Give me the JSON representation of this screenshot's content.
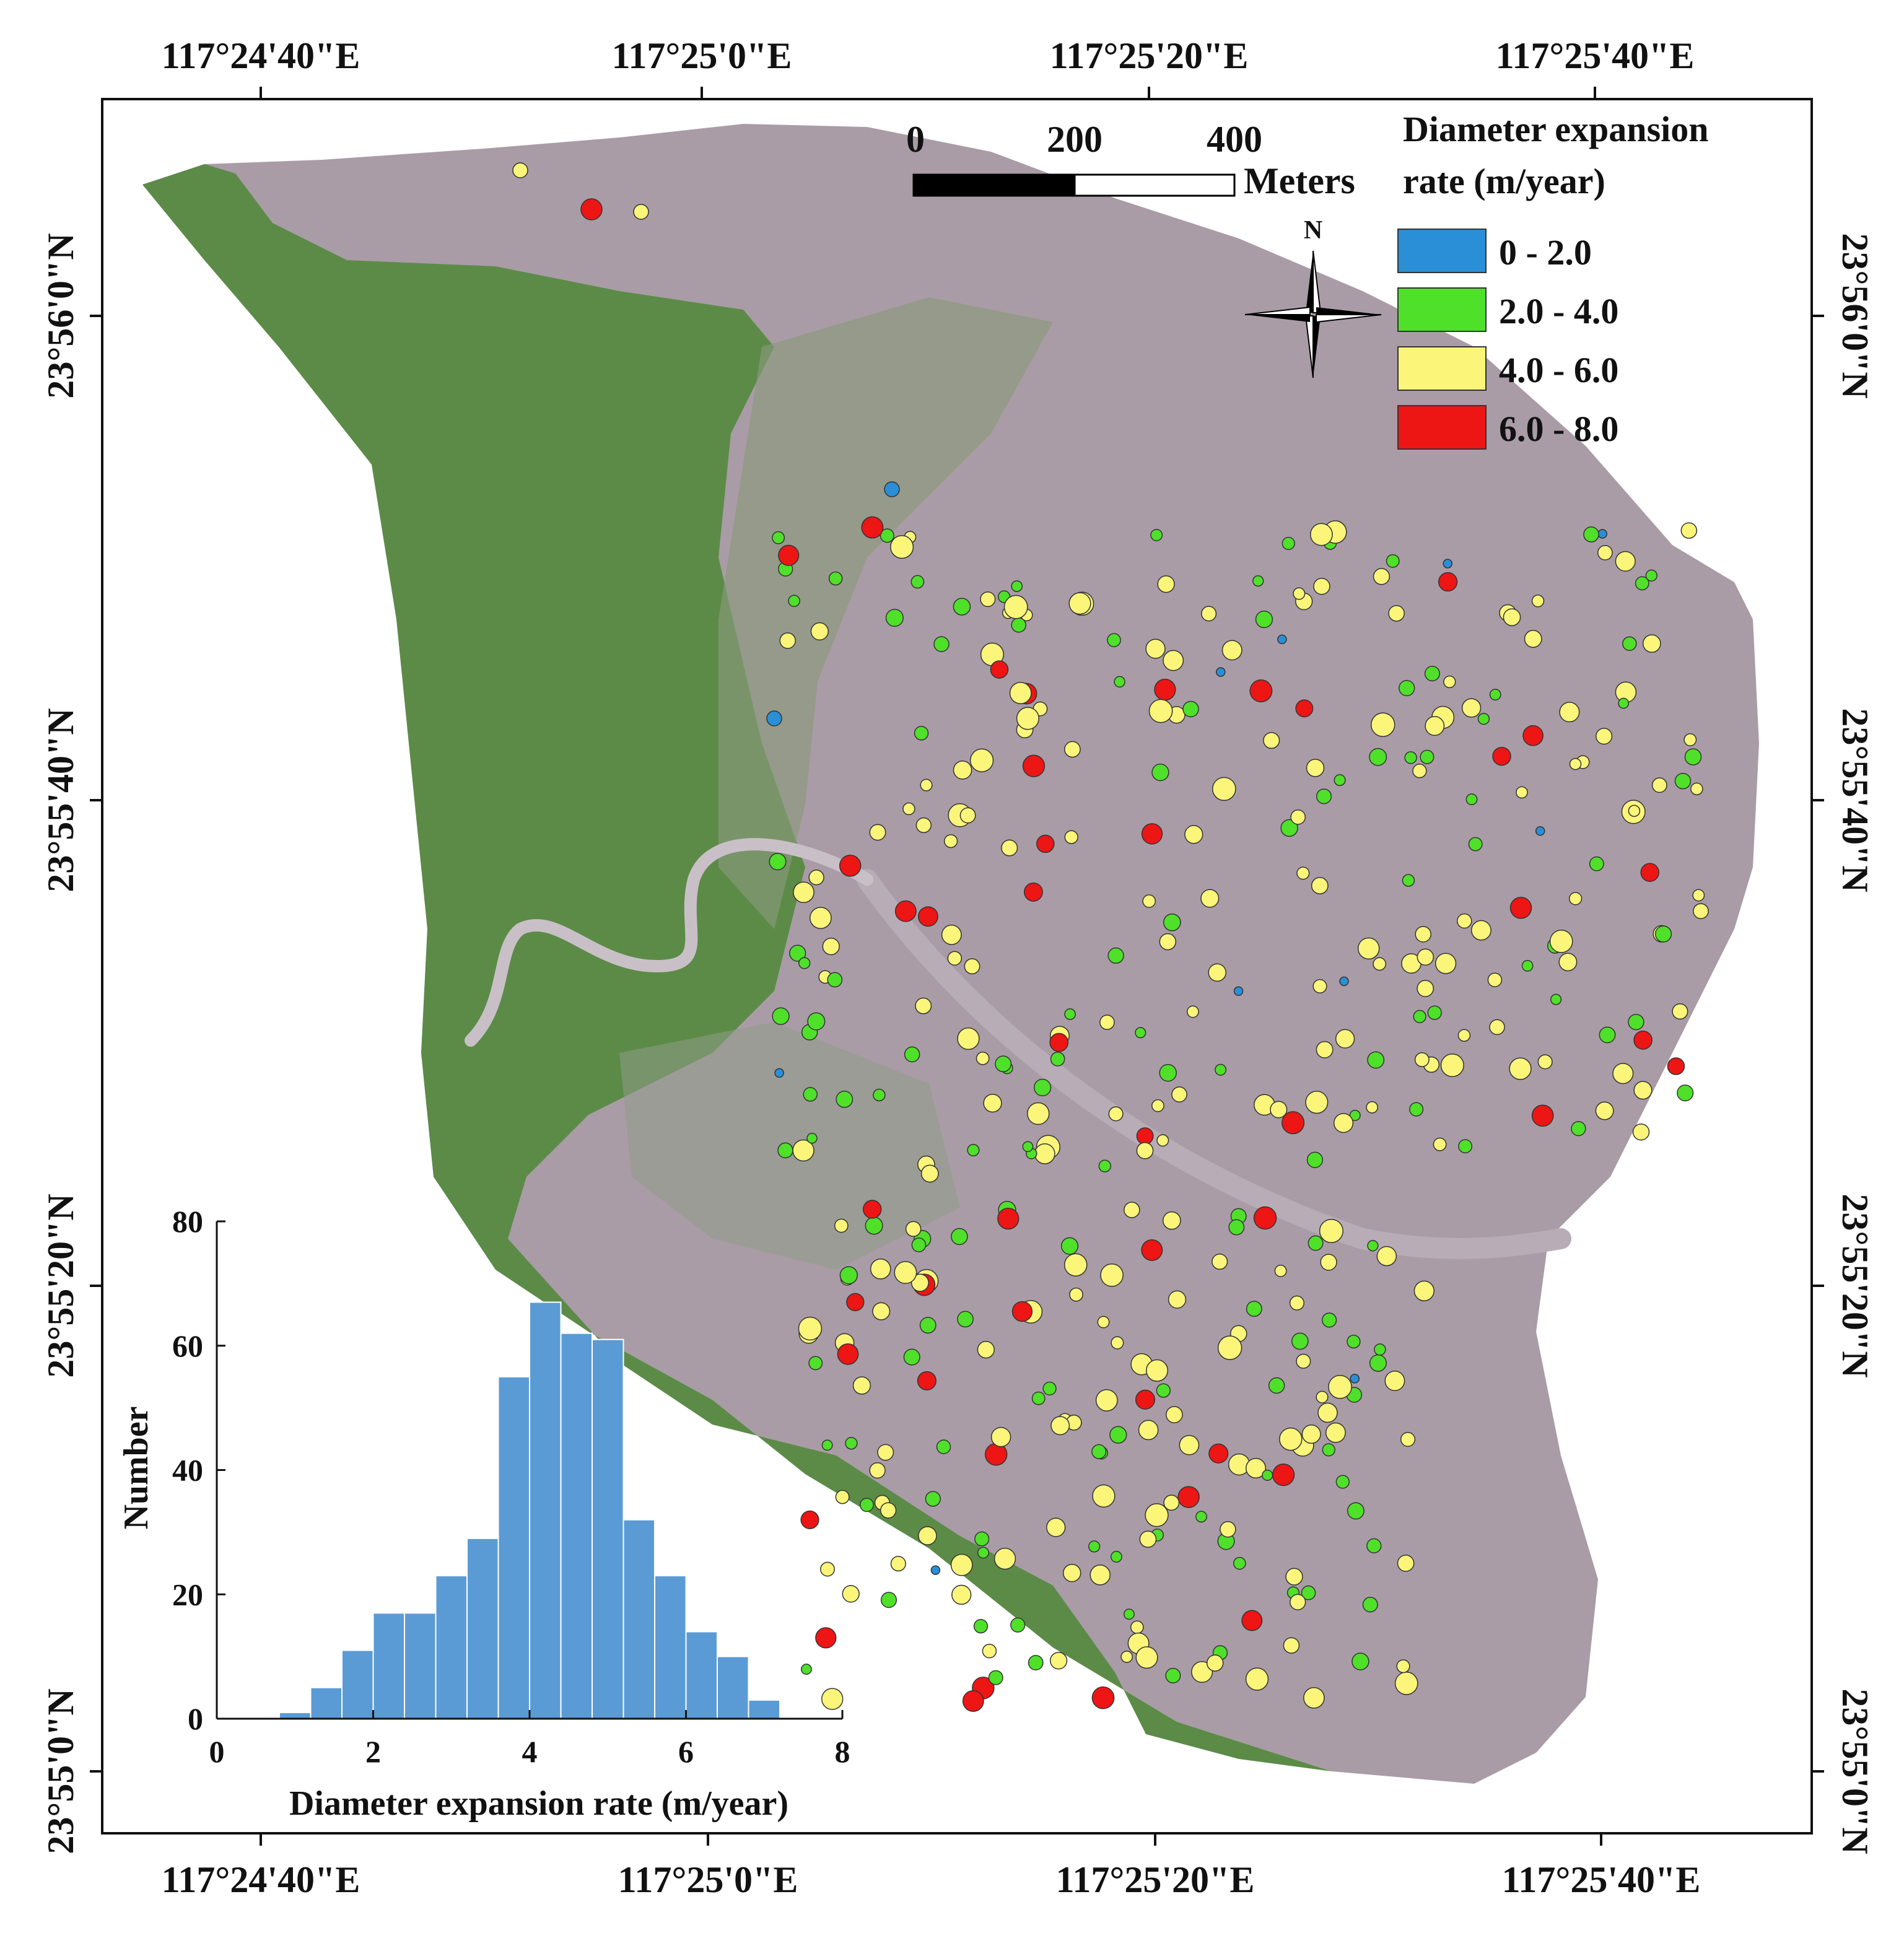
{
  "axes": {
    "top_lon": [
      "117°24'40\"E",
      "117°25'0\"E",
      "117°25'20\"E",
      "117°25'40\"E"
    ],
    "bottom_lon": [
      "117°24'40\"E",
      "117°25'0\"E",
      "117°25'20\"E",
      "117°25'40\"E"
    ],
    "left_lat": [
      "23°56'0\"N",
      "23°55'40\"N",
      "23°55'20\"N",
      "23°55'0\"N"
    ],
    "right_lat": [
      "23°56'0\"N",
      "23°55'40\"N",
      "23°55'20\"N",
      "23°55'0\"N"
    ]
  },
  "scale_bar": {
    "labels": [
      "0",
      "200",
      "400"
    ],
    "unit": "Meters"
  },
  "north_arrow": {
    "label": "N"
  },
  "legend": {
    "title_line1": "Diameter expansion",
    "title_line2": "rate (m/year)",
    "items": [
      {
        "label": "0 - 2.0",
        "color": "#2a8fd6"
      },
      {
        "label": "2.0 - 4.0",
        "color": "#4fe02a"
      },
      {
        "label": "4.0 - 6.0",
        "color": "#fbf57a"
      },
      {
        "label": "6.0 - 8.0",
        "color": "#ee1515"
      }
    ]
  },
  "chart_data": {
    "type": "bar",
    "title": "",
    "xlabel": "Diameter expansion rate (m/year)",
    "ylabel": "Number",
    "xlim": [
      0,
      8
    ],
    "ylim": [
      0,
      80
    ],
    "x_ticks": [
      "0",
      "2",
      "4",
      "6",
      "8"
    ],
    "y_ticks": [
      "0",
      "20",
      "40",
      "60",
      "80"
    ],
    "bin_width": 0.4,
    "bin_starts": [
      0.8,
      1.2,
      1.6,
      2.0,
      2.4,
      2.8,
      3.2,
      3.6,
      4.0,
      4.4,
      4.8,
      5.2,
      5.6,
      6.0,
      6.4,
      6.8
    ],
    "values": [
      1,
      5,
      11,
      17,
      17,
      23,
      29,
      55,
      67,
      62,
      61,
      32,
      23,
      14,
      10,
      3
    ],
    "bar_color": "#5b9bd5"
  }
}
